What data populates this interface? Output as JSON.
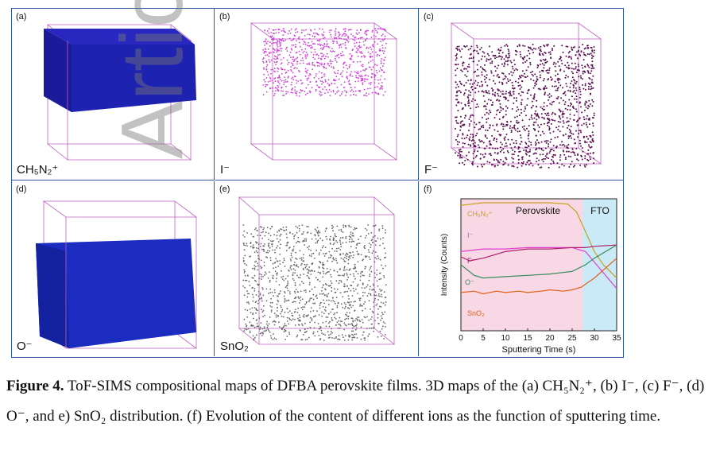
{
  "panels": [
    {
      "letter": "(a)",
      "ion": "CH₅N₂⁺",
      "color": "#1e1ea0"
    },
    {
      "letter": "(b)",
      "ion": "I⁻",
      "color": "#d040d8"
    },
    {
      "letter": "(c)",
      "ion": "F⁻",
      "color": "#5a1050"
    },
    {
      "letter": "(d)",
      "ion": "O⁻",
      "color": "#1a2ab0"
    },
    {
      "letter": "(e)",
      "ion": "SnO₂",
      "color": "#666666"
    },
    {
      "letter": "(f)",
      "ion": "",
      "color": ""
    }
  ],
  "chart_data": {
    "type": "line",
    "xlabel": "Sputtering Time (s)",
    "ylabel": "Intensity (Counts)",
    "xlim": [
      0,
      35
    ],
    "x_ticks": [
      "0",
      "5",
      "10",
      "15",
      "20",
      "25",
      "30",
      "35"
    ],
    "regions": [
      {
        "label": "Perovskite",
        "x_range": [
          0,
          27.5
        ],
        "color": "#f8d8e4"
      },
      {
        "label": "FTO",
        "x_range": [
          27.5,
          35
        ],
        "color": "#c9eaf6"
      }
    ],
    "series": [
      {
        "name": "CH₅N₂⁺",
        "color": "#c8a020",
        "x": [
          0,
          5,
          10,
          15,
          20,
          24,
          26,
          28,
          30,
          32,
          35
        ],
        "y": [
          0.95,
          0.97,
          0.97,
          0.97,
          0.97,
          0.96,
          0.9,
          0.75,
          0.6,
          0.5,
          0.4
        ]
      },
      {
        "name": "I⁻",
        "color": "#e040d0",
        "x": [
          0,
          5,
          10,
          15,
          20,
          25,
          28,
          30,
          35
        ],
        "y": [
          0.6,
          0.62,
          0.62,
          0.63,
          0.63,
          0.63,
          0.6,
          0.52,
          0.32
        ]
      },
      {
        "name": "F⁻",
        "color": "#b0206e",
        "x": [
          0,
          2,
          5,
          10,
          15,
          20,
          25,
          28,
          30,
          35
        ],
        "y": [
          0.56,
          0.53,
          0.55,
          0.6,
          0.62,
          0.62,
          0.63,
          0.63,
          0.64,
          0.65
        ]
      },
      {
        "name": "O⁻",
        "color": "#3a8a5a",
        "x": [
          0,
          3,
          5,
          10,
          15,
          20,
          25,
          28,
          30,
          35
        ],
        "y": [
          0.5,
          0.42,
          0.4,
          0.41,
          0.42,
          0.43,
          0.45,
          0.5,
          0.55,
          0.65
        ]
      },
      {
        "name": "SnO₂",
        "color": "#e0601a",
        "x": [
          0,
          3,
          5,
          8,
          10,
          13,
          15,
          18,
          20,
          23,
          25,
          27,
          30,
          35
        ],
        "y": [
          0.29,
          0.3,
          0.28,
          0.3,
          0.29,
          0.3,
          0.29,
          0.3,
          0.31,
          0.3,
          0.31,
          0.33,
          0.4,
          0.55
        ]
      }
    ]
  },
  "caption": {
    "label": "Figure 4.",
    "text": " ToF-SIMS compositional maps of DFBA perovskite films. 3D maps of the (a) CH₅N₂⁺, (b) I⁻, (c) F⁻, (d) O⁻, and e) SnO₂ distribution. (f) Evolution of the content of different ions as the function of sputtering time."
  },
  "watermark": "Article"
}
